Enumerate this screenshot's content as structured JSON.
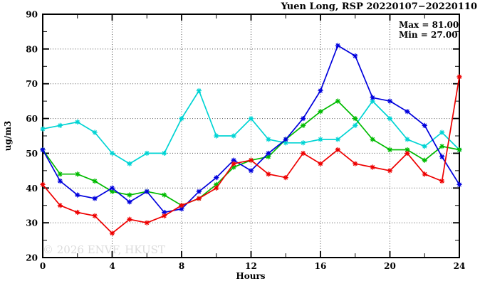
{
  "title": "Yuen Long, RSP 20220107−20220110",
  "legend": {
    "max_label": "Max = 81.00",
    "min_label": "Min = 27.00"
  },
  "watermark": "© 2026 ENVF, HKUST",
  "axes": {
    "x_label": "Hours",
    "y_label": "ug/m3"
  },
  "colors": {
    "blue": "#0000dd",
    "cyan": "#00d4d4",
    "green": "#00bb00",
    "red": "#ee0000",
    "grid": "#555555",
    "frame": "#000000"
  },
  "chart_data": {
    "type": "line",
    "title": "Yuen Long, RSP 20220107−20220110",
    "xlabel": "Hours",
    "ylabel": "ug/m3",
    "xlim": [
      0,
      24
    ],
    "ylim": [
      20,
      90
    ],
    "x_major_ticks": [
      0,
      4,
      8,
      12,
      16,
      20,
      24
    ],
    "x_minor_step": 2,
    "y_major_ticks": [
      20,
      30,
      40,
      50,
      60,
      70,
      80,
      90
    ],
    "y_minor_step": 5,
    "grid": true,
    "legend_position": "top-right",
    "annotations": {
      "max": 81.0,
      "min": 27.0
    },
    "x": [
      0,
      1,
      2,
      3,
      4,
      5,
      6,
      7,
      8,
      9,
      10,
      11,
      12,
      13,
      14,
      15,
      16,
      17,
      18,
      19,
      20,
      21,
      22,
      23,
      24
    ],
    "series": [
      {
        "name": "cyan",
        "color": "#00d4d4",
        "values": [
          57,
          58,
          59,
          56,
          50,
          47,
          50,
          50,
          60,
          68,
          55,
          55,
          60,
          54,
          53,
          53,
          54,
          54,
          58,
          65,
          60,
          54,
          52,
          56,
          51
        ]
      },
      {
        "name": "green",
        "color": "#00bb00",
        "values": [
          51,
          44,
          44,
          42,
          39,
          38,
          39,
          38,
          35,
          37,
          41,
          46,
          48,
          49,
          54,
          58,
          62,
          65,
          60,
          54,
          51,
          51,
          48,
          52,
          51
        ]
      },
      {
        "name": "blue",
        "color": "#0000dd",
        "values": [
          51,
          42,
          38,
          37,
          40,
          36,
          39,
          33,
          34,
          39,
          43,
          48,
          45,
          50,
          54,
          60,
          68,
          81,
          78,
          66,
          65,
          62,
          58,
          49,
          41
        ]
      },
      {
        "name": "red",
        "color": "#ee0000",
        "values": [
          41,
          35,
          33,
          32,
          27,
          31,
          30,
          32,
          35,
          37,
          40,
          47,
          48,
          44,
          43,
          50,
          47,
          51,
          47,
          46,
          45,
          50,
          44,
          42,
          72
        ]
      }
    ]
  }
}
